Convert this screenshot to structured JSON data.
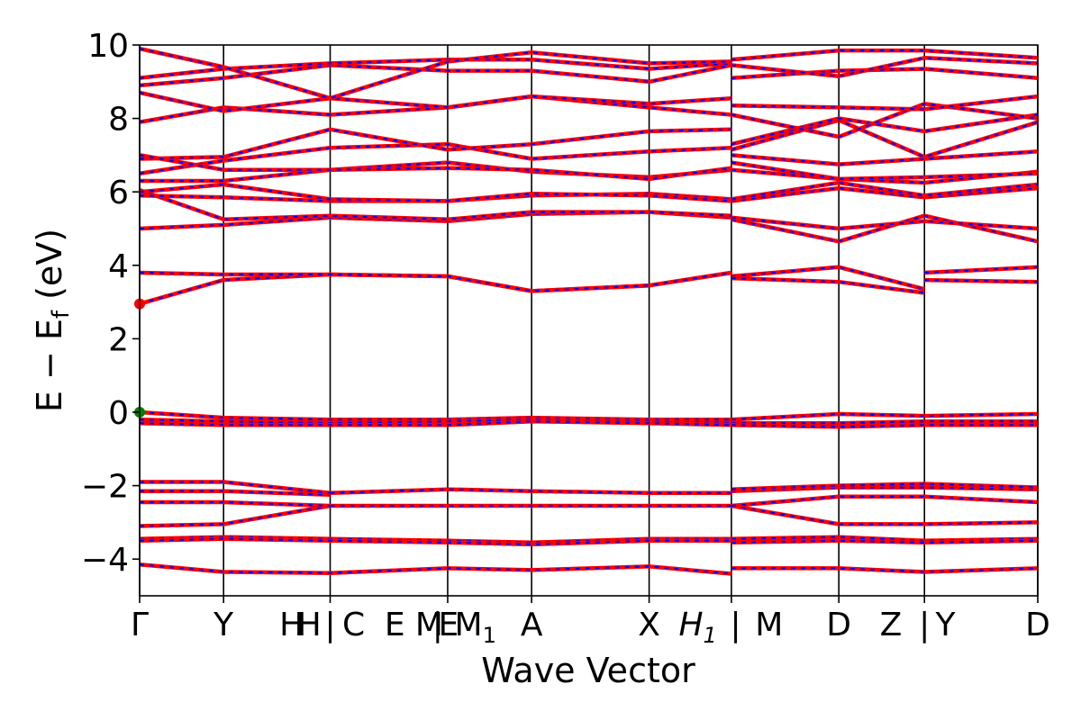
{
  "chart_data": {
    "type": "line",
    "title": "",
    "xlabel": "Wave Vector",
    "ylabel": "E − E",
    "ylabel_sub": "f",
    "ylabel_unit": " (eV)",
    "ylim": [
      -5,
      10
    ],
    "yticks": [
      -4,
      -2,
      0,
      2,
      4,
      6,
      8,
      10
    ],
    "ytick_labels": [
      "−4",
      "−2",
      "0",
      "2",
      "4",
      "6",
      "8",
      "10"
    ],
    "xlim": [
      0,
      10.7
    ],
    "kpoint_lines": [
      0,
      1.0,
      2.27,
      3.67,
      4.67,
      6.07,
      7.05,
      8.33,
      9.35,
      10.7
    ],
    "kpoint_labels": [
      {
        "x": 0,
        "text": "Γ"
      },
      {
        "x": 1.0,
        "text": "Y"
      },
      {
        "x": 1.81,
        "text": "H"
      },
      {
        "x": 2.02,
        "text": "H"
      },
      {
        "x": 2.27,
        "text": "|"
      },
      {
        "x": 2.55,
        "text": "C"
      },
      {
        "x": 3.04,
        "text": "E"
      },
      {
        "x": 3.45,
        "text": "M"
      },
      {
        "x": 3.55,
        "text": "|"
      },
      {
        "x": 3.68,
        "text": "E"
      },
      {
        "x": 4.0,
        "text": "M",
        "sub": "1"
      },
      {
        "x": 4.67,
        "text": "A"
      },
      {
        "x": 6.07,
        "text": "X"
      },
      {
        "x": 6.65,
        "text": "H",
        "sub": "1",
        "italic": true
      },
      {
        "x": 7.1,
        "text": "|"
      },
      {
        "x": 7.5,
        "text": "M"
      },
      {
        "x": 8.33,
        "text": "D"
      },
      {
        "x": 8.95,
        "text": "Z"
      },
      {
        "x": 9.35,
        "text": "|"
      },
      {
        "x": 9.6,
        "text": "Y"
      },
      {
        "x": 10.7,
        "text": "D"
      }
    ],
    "colors": {
      "spin_up": "#ff0000",
      "spin_down": "#0000ff",
      "vbm": "#008000",
      "cbm": "#ff0000",
      "grid": "#000000"
    },
    "markers": [
      {
        "name": "CBM",
        "x": 0,
        "y": 2.95,
        "color": "#ff0000"
      },
      {
        "name": "VBM",
        "x": 0,
        "y": 0.0,
        "color": "#008000"
      }
    ],
    "bands": [
      {
        "x": [
          0,
          1.0,
          2.27,
          3.67,
          4.67,
          6.07,
          7.05
        ],
        "y": [
          -4.15,
          -4.35,
          -4.38,
          -4.25,
          -4.3,
          -4.2,
          -4.4
        ]
      },
      {
        "x": [
          7.05,
          8.33,
          9.35,
          10.7
        ],
        "y": [
          -4.25,
          -4.25,
          -4.35,
          -4.25
        ]
      },
      {
        "x": [
          0,
          1.0,
          2.27,
          3.67,
          4.67,
          6.07,
          7.05
        ],
        "y": [
          -3.45,
          -3.4,
          -3.45,
          -3.5,
          -3.55,
          -3.45,
          -3.45
        ]
      },
      {
        "x": [
          0,
          1.0,
          2.27,
          3.67,
          4.67,
          6.07,
          7.05
        ],
        "y": [
          -3.5,
          -3.45,
          -3.5,
          -3.55,
          -3.6,
          -3.5,
          -3.5
        ]
      },
      {
        "x": [
          7.05,
          8.33,
          9.35,
          10.7
        ],
        "y": [
          -3.45,
          -3.4,
          -3.5,
          -3.45
        ]
      },
      {
        "x": [
          7.05,
          8.33,
          9.35,
          10.7
        ],
        "y": [
          -3.55,
          -3.5,
          -3.55,
          -3.5
        ]
      },
      {
        "x": [
          0,
          1.0,
          2.27
        ],
        "y": [
          -3.1,
          -3.05,
          -2.55
        ]
      },
      {
        "x": [
          0,
          1.0,
          2.27
        ],
        "y": [
          -2.45,
          -2.45,
          -2.55
        ]
      },
      {
        "x": [
          0,
          1.0,
          2.27
        ],
        "y": [
          -2.15,
          -2.15,
          -2.25
        ]
      },
      {
        "x": [
          0,
          1.0,
          2.27
        ],
        "y": [
          -1.9,
          -1.9,
          -2.2
        ]
      },
      {
        "x": [
          2.27,
          3.67,
          4.67,
          6.07,
          7.05
        ],
        "y": [
          -2.55,
          -2.55,
          -2.55,
          -2.55,
          -2.55
        ]
      },
      {
        "x": [
          2.27,
          3.67,
          4.67,
          6.07,
          7.05
        ],
        "y": [
          -2.2,
          -2.1,
          -2.15,
          -2.2,
          -2.2
        ]
      },
      {
        "x": [
          7.05,
          8.33,
          9.35,
          10.7
        ],
        "y": [
          -2.55,
          -3.05,
          -3.05,
          -3.0
        ]
      },
      {
        "x": [
          7.05,
          8.33,
          9.35,
          10.7
        ],
        "y": [
          -2.55,
          -2.3,
          -2.3,
          -2.45
        ]
      },
      {
        "x": [
          7.05,
          8.33,
          9.35,
          10.7
        ],
        "y": [
          -2.15,
          -2.05,
          -2.05,
          -2.1
        ]
      },
      {
        "x": [
          7.05,
          8.33,
          9.35,
          10.7
        ],
        "y": [
          -2.1,
          -2.0,
          -1.95,
          -2.05
        ]
      },
      {
        "x": [
          0,
          1.0,
          2.27,
          3.67,
          4.67,
          6.07,
          7.05
        ],
        "y": [
          0.0,
          -0.15,
          -0.2,
          -0.2,
          -0.15,
          -0.2,
          -0.2
        ]
      },
      {
        "x": [
          0,
          1.0,
          2.27,
          3.67,
          4.67,
          6.07,
          7.05
        ],
        "y": [
          -0.2,
          -0.25,
          -0.3,
          -0.25,
          -0.2,
          -0.25,
          -0.3
        ]
      },
      {
        "x": [
          0,
          1.0,
          2.27,
          3.67,
          4.67,
          6.07,
          7.05
        ],
        "y": [
          -0.3,
          -0.35,
          -0.35,
          -0.35,
          -0.25,
          -0.3,
          -0.35
        ]
      },
      {
        "x": [
          7.05,
          8.33,
          9.35,
          10.7
        ],
        "y": [
          -0.2,
          -0.05,
          -0.1,
          -0.05
        ]
      },
      {
        "x": [
          7.05,
          8.33,
          9.35,
          10.7
        ],
        "y": [
          -0.3,
          -0.3,
          -0.25,
          -0.25
        ]
      },
      {
        "x": [
          7.05,
          8.33,
          9.35,
          10.7
        ],
        "y": [
          -0.35,
          -0.4,
          -0.35,
          -0.35
        ]
      },
      {
        "x": [
          0,
          1.0,
          2.27,
          3.67,
          4.67,
          6.07,
          7.05
        ],
        "y": [
          2.95,
          3.6,
          3.75,
          3.7,
          3.3,
          3.45,
          3.8
        ]
      },
      {
        "x": [
          0,
          1.0,
          2.27,
          3.67,
          4.67,
          6.07,
          7.05
        ],
        "y": [
          3.8,
          3.75,
          3.75,
          3.7,
          3.3,
          3.45,
          3.8
        ]
      },
      {
        "x": [
          7.05,
          8.33,
          9.35
        ],
        "y": [
          3.7,
          3.95,
          3.35
        ]
      },
      {
        "x": [
          7.05,
          8.33,
          9.35
        ],
        "y": [
          3.65,
          3.55,
          3.25
        ]
      },
      {
        "x": [
          9.35,
          10.7
        ],
        "y": [
          3.8,
          3.95
        ]
      },
      {
        "x": [
          9.35,
          10.7
        ],
        "y": [
          3.6,
          3.55
        ]
      },
      {
        "x": [
          0,
          1.0,
          2.27,
          3.67,
          4.67,
          6.07,
          7.05
        ],
        "y": [
          5.0,
          5.1,
          5.3,
          5.2,
          5.4,
          5.45,
          5.3
        ]
      },
      {
        "x": [
          0,
          1.0,
          2.27,
          3.67,
          4.67,
          6.07,
          7.05
        ],
        "y": [
          6.05,
          5.25,
          5.35,
          5.25,
          5.45,
          5.45,
          5.35
        ]
      },
      {
        "x": [
          0,
          1.0,
          2.27,
          3.67,
          4.67,
          6.07,
          7.05
        ],
        "y": [
          5.9,
          5.85,
          5.75,
          5.75,
          5.9,
          5.95,
          5.8
        ]
      },
      {
        "x": [
          0,
          1.0,
          2.27,
          3.67,
          4.67,
          6.07,
          7.05
        ],
        "y": [
          6.0,
          6.2,
          5.8,
          5.75,
          5.95,
          5.9,
          5.75
        ]
      },
      {
        "x": [
          0,
          1.0,
          2.27,
          3.67,
          4.67,
          6.07,
          7.05
        ],
        "y": [
          6.3,
          6.3,
          6.6,
          6.8,
          6.55,
          6.4,
          6.6
        ]
      },
      {
        "x": [
          0,
          1.0,
          2.27,
          3.67,
          4.67,
          6.07,
          7.05
        ],
        "y": [
          6.5,
          6.85,
          7.2,
          7.3,
          6.9,
          7.1,
          7.2
        ]
      },
      {
        "x": [
          0,
          1.0,
          2.27,
          3.67,
          4.67,
          6.07,
          7.05
        ],
        "y": [
          6.9,
          6.95,
          7.7,
          7.15,
          7.3,
          7.65,
          7.7
        ]
      },
      {
        "x": [
          0,
          1.0,
          2.27,
          3.67,
          4.67,
          6.07,
          7.05
        ],
        "y": [
          7.0,
          6.6,
          6.6,
          6.65,
          6.6,
          6.35,
          6.65
        ]
      },
      {
        "x": [
          0,
          1.0,
          2.27,
          3.67,
          4.67,
          6.07,
          7.05
        ],
        "y": [
          7.9,
          8.3,
          8.1,
          8.3,
          8.6,
          8.3,
          8.1
        ]
      },
      {
        "x": [
          0,
          1.0,
          2.27,
          3.67,
          4.67,
          6.07,
          7.05
        ],
        "y": [
          8.7,
          8.2,
          8.55,
          8.3,
          8.6,
          8.4,
          8.55
        ]
      },
      {
        "x": [
          0,
          1.0,
          2.27,
          3.67,
          4.67,
          6.07,
          7.05
        ],
        "y": [
          8.9,
          9.1,
          9.45,
          9.3,
          9.3,
          9.0,
          9.45
        ]
      },
      {
        "x": [
          0,
          1.0,
          2.27,
          3.67,
          4.67,
          6.07,
          7.05
        ],
        "y": [
          9.1,
          9.35,
          9.5,
          9.6,
          9.6,
          9.35,
          9.5
        ]
      },
      {
        "x": [
          0,
          1.0,
          2.27,
          3.67,
          4.67,
          6.07,
          7.05
        ],
        "y": [
          9.9,
          9.4,
          8.55,
          9.55,
          9.8,
          9.5,
          9.55
        ]
      },
      {
        "x": [
          7.05,
          8.33,
          9.35,
          10.7
        ],
        "y": [
          5.25,
          4.65,
          5.35,
          4.65
        ]
      },
      {
        "x": [
          7.05,
          8.33,
          9.35,
          10.7
        ],
        "y": [
          5.3,
          5.0,
          5.2,
          5.0
        ]
      },
      {
        "x": [
          7.05,
          8.33,
          9.35,
          10.7
        ],
        "y": [
          5.75,
          6.1,
          5.85,
          6.1
        ]
      },
      {
        "x": [
          7.05,
          8.33,
          9.35,
          10.7
        ],
        "y": [
          5.8,
          6.25,
          5.9,
          6.2
        ]
      },
      {
        "x": [
          7.05,
          8.33,
          9.35,
          10.7
        ],
        "y": [
          6.6,
          6.35,
          6.25,
          6.55
        ]
      },
      {
        "x": [
          7.05,
          8.33,
          9.35,
          10.7
        ],
        "y": [
          6.8,
          6.35,
          6.4,
          6.5
        ]
      },
      {
        "x": [
          7.05,
          8.33,
          9.35,
          10.7
        ],
        "y": [
          7.0,
          6.75,
          6.9,
          7.1
        ]
      },
      {
        "x": [
          7.05,
          8.33,
          9.35,
          10.7
        ],
        "y": [
          7.15,
          7.95,
          6.95,
          7.9
        ]
      },
      {
        "x": [
          7.05,
          8.33,
          9.35,
          10.7
        ],
        "y": [
          7.3,
          8.0,
          7.65,
          8.1
        ]
      },
      {
        "x": [
          7.05,
          8.33,
          9.35,
          10.7
        ],
        "y": [
          8.1,
          7.5,
          8.4,
          8.0
        ]
      },
      {
        "x": [
          7.05,
          8.33,
          9.35,
          10.7
        ],
        "y": [
          8.35,
          8.3,
          8.25,
          8.6
        ]
      },
      {
        "x": [
          7.05,
          8.33,
          9.35,
          10.7
        ],
        "y": [
          9.1,
          9.3,
          9.35,
          9.1
        ]
      },
      {
        "x": [
          7.05,
          8.33,
          9.35,
          10.7
        ],
        "y": [
          9.45,
          9.15,
          9.65,
          9.5
        ]
      },
      {
        "x": [
          7.05,
          8.33,
          9.35,
          10.7
        ],
        "y": [
          9.6,
          9.85,
          9.85,
          9.65
        ]
      }
    ]
  }
}
